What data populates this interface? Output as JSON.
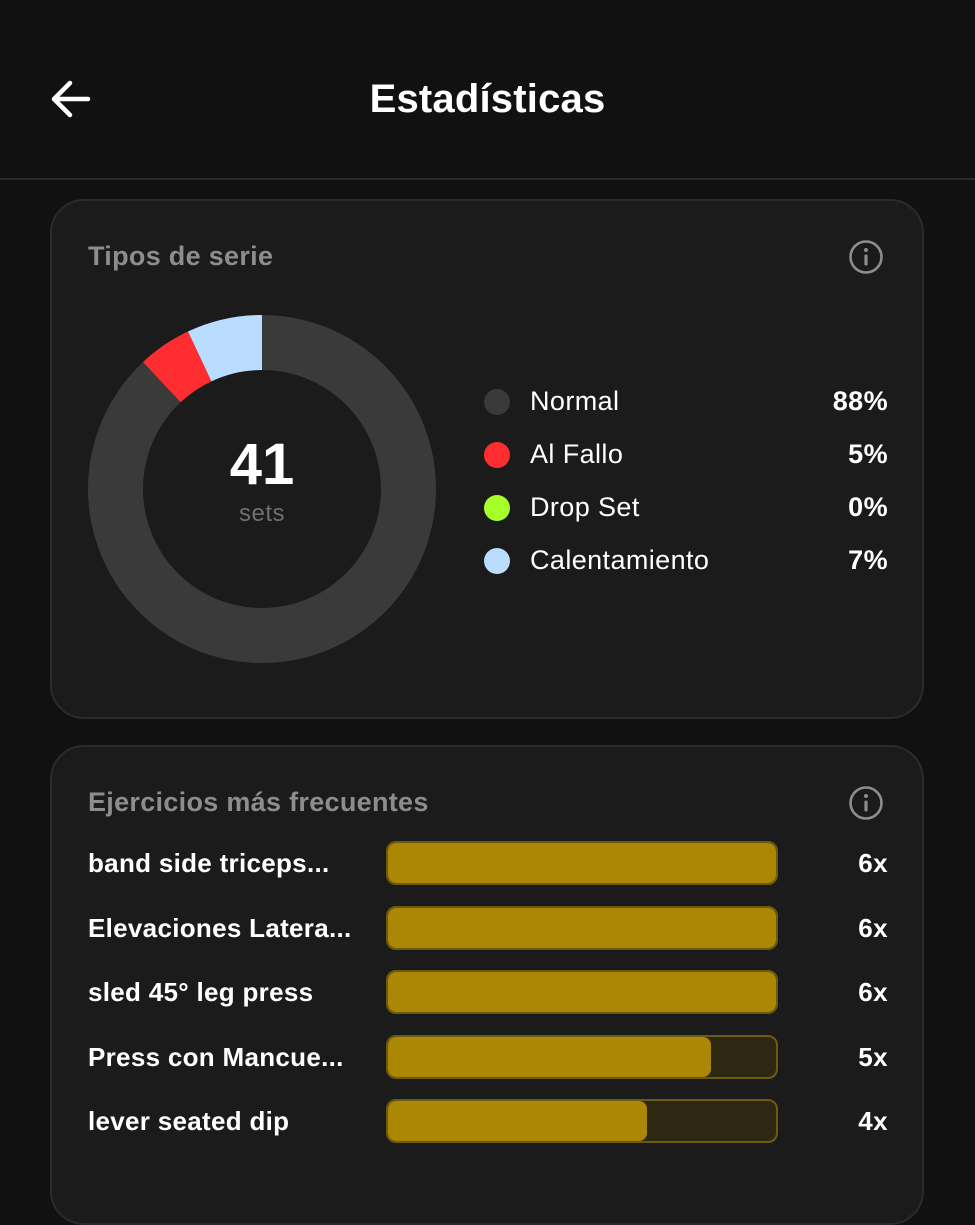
{
  "header": {
    "title": "Estadísticas",
    "back_icon": "arrow-left-icon"
  },
  "series_card": {
    "title": "Tipos de serie",
    "info_icon": "info-icon",
    "total": "41",
    "unit": "sets"
  },
  "chart_data": [
    {
      "type": "pie",
      "title": "Tipos de serie",
      "categories": [
        "Normal",
        "Al Fallo",
        "Drop Set",
        "Calentamiento"
      ],
      "values": [
        88,
        5,
        0,
        7
      ],
      "value_labels": [
        "88%",
        "5%",
        "0%",
        "7%"
      ],
      "colors": [
        "#3a3a3a",
        "#ff2d30",
        "#a6ff28",
        "#b9dcff"
      ],
      "center_text": "41",
      "center_subtext": "sets",
      "legend": "right"
    },
    {
      "type": "bar",
      "orientation": "horizontal",
      "title": "Ejercicios más frecuentes",
      "categories": [
        "band side triceps...",
        "Elevaciones Latera...",
        "sled 45° leg press",
        "Press con Mancue...",
        "lever seated dip"
      ],
      "values": [
        6,
        6,
        6,
        5,
        4
      ],
      "value_labels": [
        "6x",
        "6x",
        "6x",
        "5x",
        "4x"
      ],
      "xlim": [
        0,
        6
      ],
      "bar_color": "#ac8706",
      "track_color": "#2e2812"
    }
  ],
  "exercises_card": {
    "title": "Ejercicios más frecuentes",
    "info_icon": "info-icon"
  }
}
